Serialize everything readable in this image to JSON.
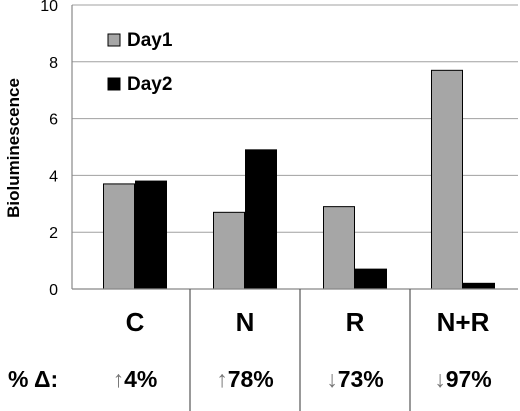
{
  "chart_data": {
    "type": "bar",
    "title": "",
    "xlabel": "",
    "ylabel": "Bioluminescence",
    "ylim": [
      0,
      10
    ],
    "yticks": [
      "0",
      "2",
      "4",
      "6",
      "8",
      "10"
    ],
    "grid": true,
    "legend_position": "top-left",
    "categories": [
      "C",
      "N",
      "R",
      "N+R"
    ],
    "series": [
      {
        "name": "Day1",
        "color": "#a6a6a6",
        "values": [
          3.7,
          2.7,
          2.9,
          7.7
        ]
      },
      {
        "name": "Day2",
        "color": "#000000",
        "values": [
          3.8,
          4.9,
          0.7,
          0.2
        ]
      }
    ],
    "change_row": {
      "label": "% Δ:",
      "values": [
        {
          "arrow": "↑",
          "text": "4%"
        },
        {
          "arrow": "↑",
          "text": "78%"
        },
        {
          "arrow": "↓",
          "text": "73%"
        },
        {
          "arrow": "↓",
          "text": "97%"
        }
      ]
    }
  }
}
